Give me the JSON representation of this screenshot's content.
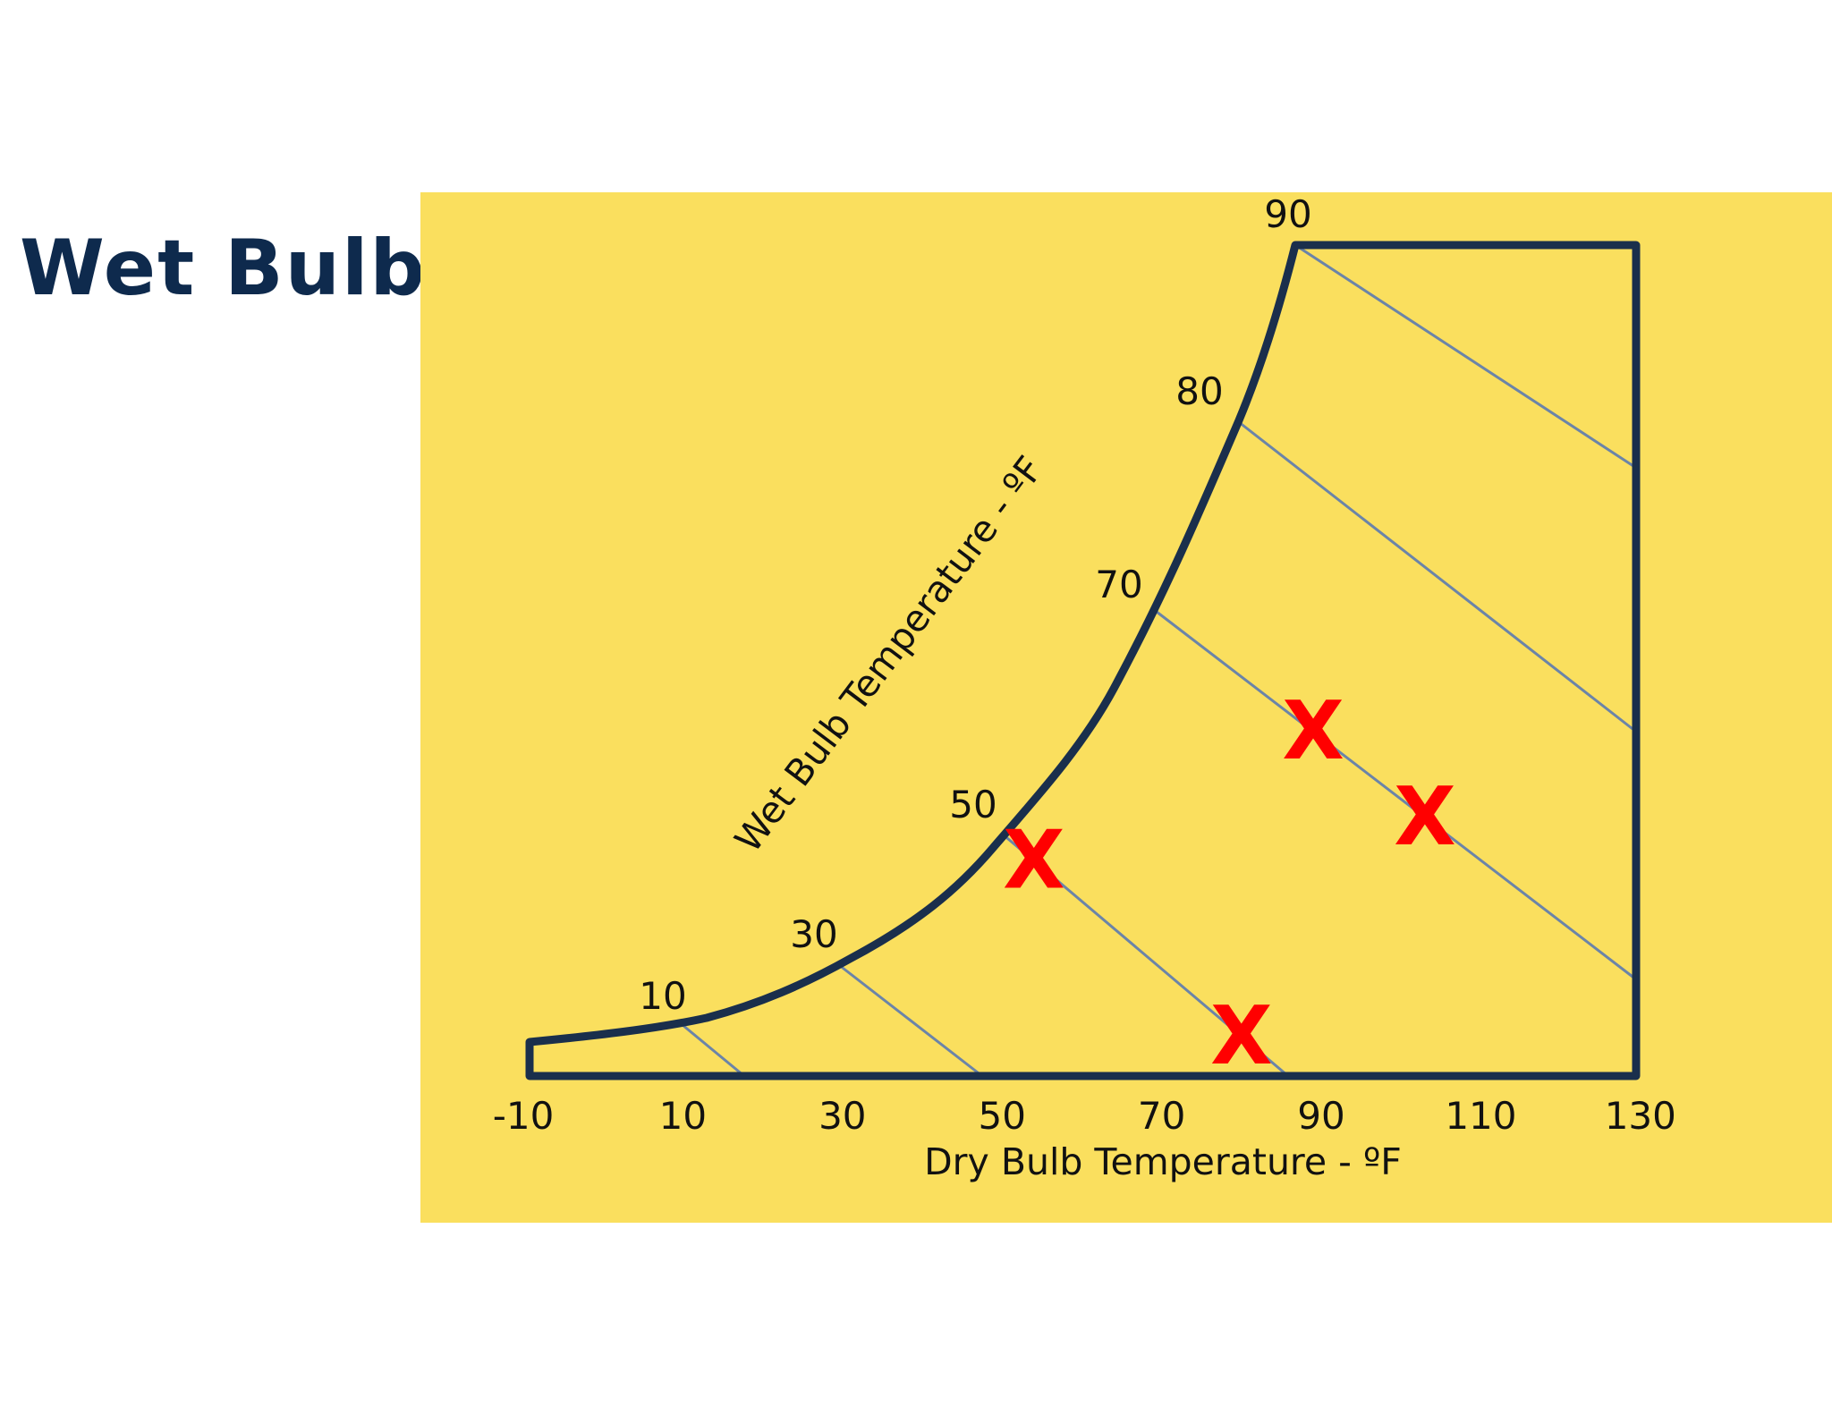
{
  "slide": {
    "title": "Wet Bulb"
  },
  "colors": {
    "panel_background": "#fadf5e",
    "saturation_curve": "#1a2f4c",
    "wet_bulb_lines": "#6b84a8",
    "markers": "#ff0000",
    "text": "#111111",
    "title": "#0e2a4d"
  },
  "chart_data": {
    "type": "scatter",
    "title": "",
    "xlabel": "Dry Bulb Temperature - ºF",
    "wet_bulb_axis_label": "Wet Bulb Temperature - ºF",
    "x_ticks": [
      "-10",
      "10",
      "30",
      "50",
      "70",
      "90",
      "110",
      "130"
    ],
    "xlim": [
      -10,
      130
    ],
    "wet_bulb_labels": [
      "10",
      "30",
      "50",
      "70",
      "80",
      "90"
    ],
    "wet_bulb_lines": [
      10,
      30,
      50,
      70,
      80,
      90
    ],
    "markers": [
      {
        "label": "X",
        "dry_bulb": 54,
        "wet_bulb": 50
      },
      {
        "label": "X",
        "dry_bulb": 80,
        "wet_bulb": 50
      },
      {
        "label": "X",
        "dry_bulb": 89,
        "wet_bulb": 70
      },
      {
        "label": "X",
        "dry_bulb": 103,
        "wet_bulb": 70
      }
    ],
    "grid": false,
    "legend": "none"
  }
}
